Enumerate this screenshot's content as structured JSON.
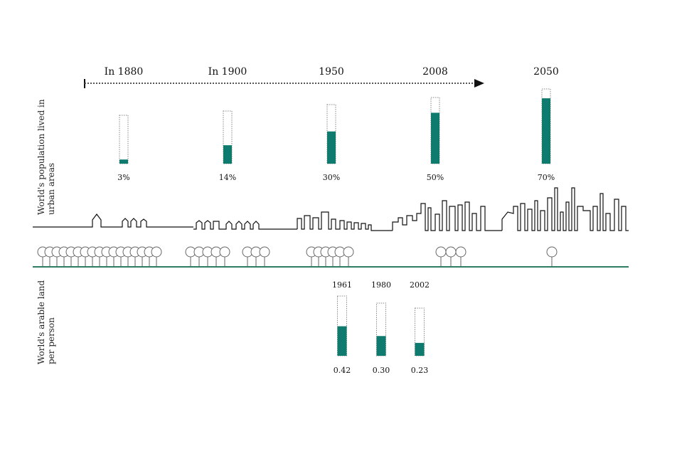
{
  "colors": {
    "accent": "#0f7a6e",
    "outline": "#888888",
    "ground": "#2e7d63"
  },
  "chart_data": [
    {
      "type": "bar",
      "ylabel_lines": [
        "World's population lived in",
        "urban areas"
      ],
      "categories": [
        "In 1880",
        "In 1900",
        "1950",
        "2008",
        "2050"
      ],
      "values": [
        3,
        14,
        30,
        50,
        70
      ],
      "value_labels": [
        "3%",
        "14%",
        "30%",
        "50%",
        "70%"
      ],
      "unit": "%"
    },
    {
      "type": "bar",
      "ylabel_lines": [
        "World's arable land",
        "per person"
      ],
      "categories": [
        "1961",
        "1980",
        "2002"
      ],
      "values": [
        0.42,
        0.3,
        0.23
      ],
      "value_labels": [
        "0.42",
        "0.30",
        "0.23"
      ]
    }
  ],
  "icons": {
    "timeline": "arrow-right-icon",
    "tree": "tree-icon",
    "skyline": "city-skyline-icon"
  }
}
